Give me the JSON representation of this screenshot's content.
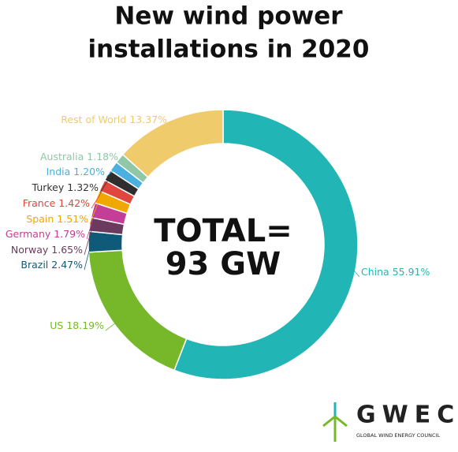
{
  "chart_data": {
    "type": "donut",
    "title_lines": [
      "New wind power",
      "installations in 2020"
    ],
    "center_lines": [
      "TOTAL=",
      "93 GW"
    ],
    "categories": [
      "China",
      "US",
      "Brazil",
      "Norway",
      "Germany",
      "Spain",
      "France",
      "Turkey",
      "India",
      "Australia",
      "Rest of World"
    ],
    "values": [
      55.91,
      18.19,
      2.47,
      1.65,
      1.79,
      1.51,
      1.42,
      1.32,
      1.2,
      1.18,
      13.37
    ],
    "value_labels": [
      "55.91%",
      "18.19%",
      "2.47%",
      "1.65%",
      "1.79%",
      "1.51%",
      "1.42%",
      "1.32%",
      "1.20%",
      "1.18%",
      "13.37%"
    ],
    "colors": [
      "#22b5b5",
      "#76b82a",
      "#0f5a78",
      "#6c3a5e",
      "#c43d96",
      "#f0a800",
      "#e0453e",
      "#2e2e2e",
      "#4ab0e0",
      "#8fc7a8",
      "#f0cb6c"
    ]
  },
  "logo": {
    "name": "GWEC",
    "tagline": "GLOBAL WIND ENERGY COUNCIL"
  }
}
